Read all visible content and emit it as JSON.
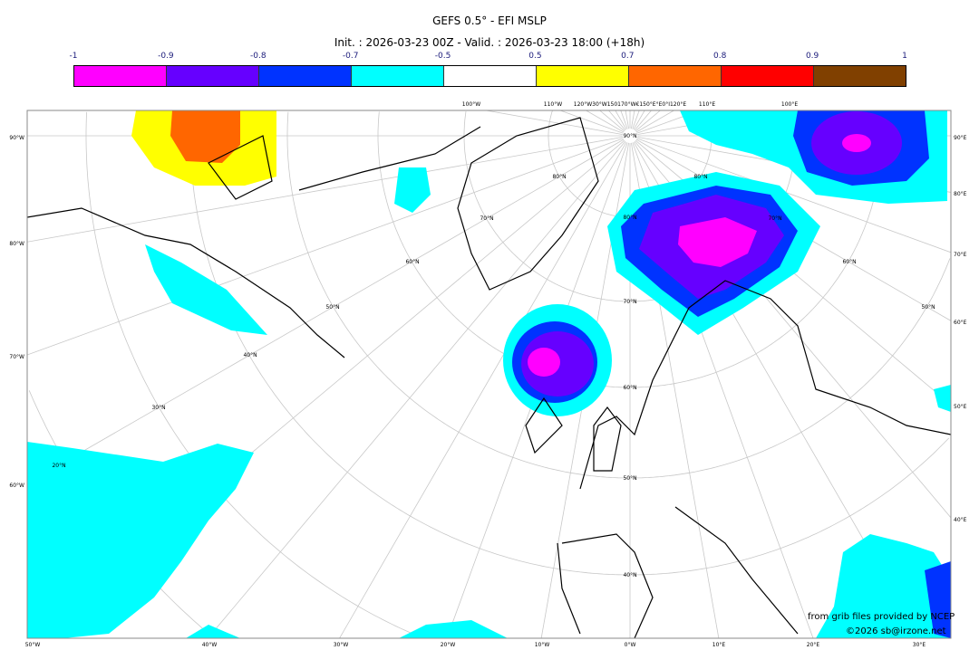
{
  "title": "GEFS 0.5° - EFI MSLP",
  "subtitle": "Init. : 2026-03-23 00Z - Valid. : 2026-03-23 18:00 (+18h)",
  "colorbar": {
    "ticks": [
      "-1",
      "-0.9",
      "-0.8",
      "-0.7",
      "-0.5",
      "0.5",
      "0.7",
      "0.8",
      "0.9",
      "1"
    ],
    "colors": [
      "#ff00ff",
      "#6600ff",
      "#0033ff",
      "#00ffff",
      "#ffffff",
      "#ffff00",
      "#ff6600",
      "#ff0000",
      "#804000"
    ]
  },
  "map": {
    "left_labels": [
      "90°W",
      "80°W",
      "70°W",
      "60°W"
    ],
    "right_labels": [
      "90°E",
      "80°E",
      "70°E",
      "60°E",
      "50°E",
      "40°E"
    ],
    "bottom_labels": [
      "50°W",
      "40°W",
      "30°W",
      "20°W",
      "10°W",
      "0°W",
      "10°E",
      "20°E",
      "30°E"
    ],
    "top_labels": [
      "100°W",
      "110°W",
      "120°W30°W150170°W€150°E°E0°I120°E",
      "110°E",
      "100°E"
    ],
    "lat_labels": [
      "90°N",
      "80°N",
      "70°N",
      "60°N",
      "50°N",
      "40°N",
      "30°N",
      "20°N"
    ]
  },
  "credits": {
    "source": "from grib files provided by NCEP",
    "copyright": "©2026 sb@irzone.net"
  }
}
